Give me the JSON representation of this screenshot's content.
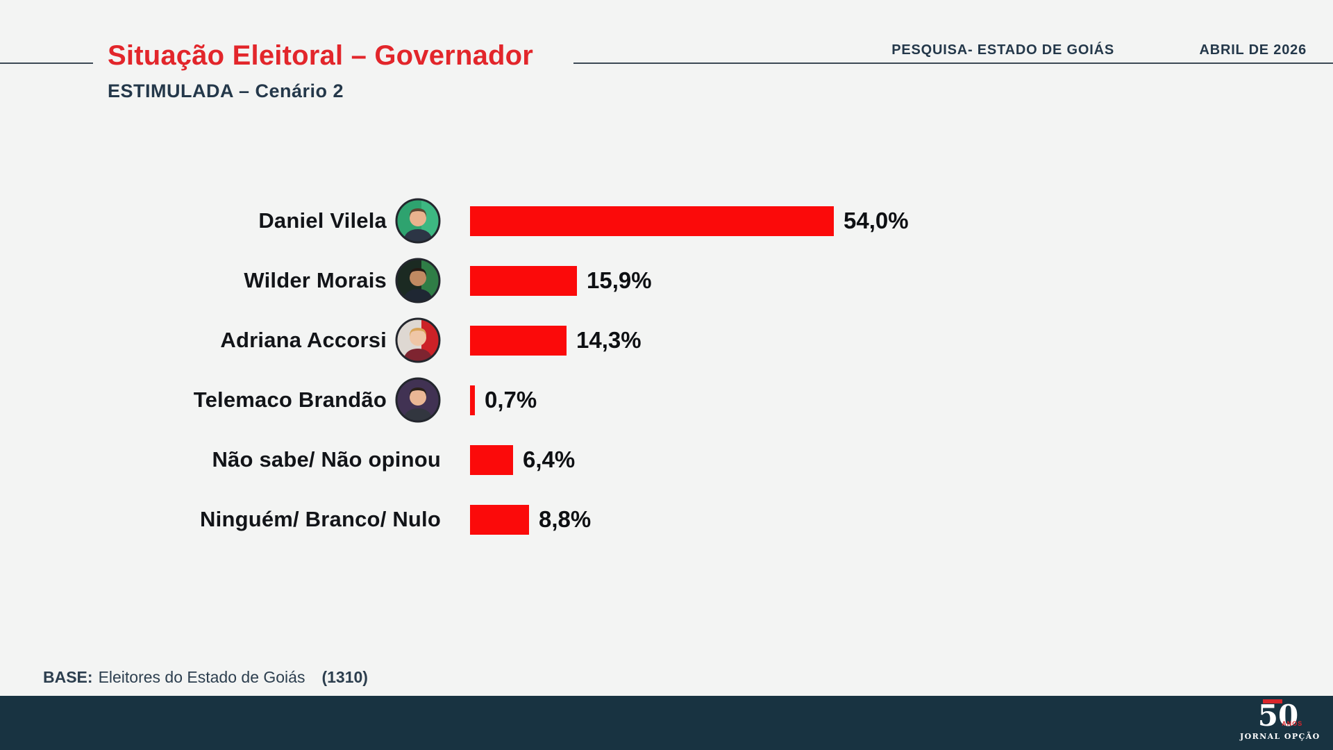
{
  "page": {
    "background": "#f3f4f3"
  },
  "header": {
    "title": "Situação Eleitoral – Governador",
    "subtitle": "ESTIMULADA – Cenário 2",
    "meta_left": "PESQUISA- ESTADO DE GOIÁS",
    "meta_right": "ABRIL DE 2026",
    "title_color": "#e2262b",
    "accent_line_color": "#3b4854"
  },
  "chart_data": {
    "type": "bar",
    "orientation": "horizontal",
    "unit": "%",
    "bar_color": "#fb0a0a",
    "xlim": [
      0,
      60
    ],
    "categories": [
      "Daniel Vilela",
      "Wilder Morais",
      "Adriana Accorsi",
      "Telemaco Brandão",
      "Não sabe/ Não opinou",
      "Ninguém/ Branco/ Nulo"
    ],
    "values": [
      54.0,
      15.9,
      14.3,
      0.7,
      6.4,
      8.8
    ],
    "items": [
      {
        "label": "Daniel Vilela",
        "value": 54.0,
        "display": "54,0%",
        "has_avatar": true,
        "avatar": {
          "name": "daniel-vilela-avatar",
          "bg": "#2ea36f",
          "bg2": "#3db882",
          "hair": "#5d4632",
          "skin": "#eab38e",
          "shirt": "#2c3545"
        }
      },
      {
        "label": "Wilder Morais",
        "value": 15.9,
        "display": "15,9%",
        "has_avatar": true,
        "avatar": {
          "name": "wilder-morais-avatar",
          "bg": "#1b2a22",
          "bg2": "#2f7d46",
          "hair": "#241a14",
          "skin": "#c08a62",
          "shirt": "#1f2733"
        }
      },
      {
        "label": "Adriana Accorsi",
        "value": 14.3,
        "display": "14,3%",
        "has_avatar": true,
        "avatar": {
          "name": "adriana-accorsi-avatar",
          "bg": "#ded8d2",
          "bg2": "#cc2127",
          "hair": "#d8a458",
          "skin": "#efc6a6",
          "shirt": "#7e2430"
        }
      },
      {
        "label": "Telemaco Brandão",
        "value": 0.7,
        "display": "0,7%",
        "has_avatar": true,
        "avatar": {
          "name": "telemaco-brandao-avatar",
          "bg": "#413253",
          "bg2": null,
          "hair": "#2b2118",
          "skin": "#eab795",
          "shirt": "#32363f"
        }
      },
      {
        "label": "Não sabe/ Não opinou",
        "value": 6.4,
        "display": "6,4%",
        "has_avatar": false,
        "avatar": null
      },
      {
        "label": "Ninguém/ Branco/ Nulo",
        "value": 8.8,
        "display": "8,8%",
        "has_avatar": false,
        "avatar": null
      }
    ],
    "title": "Situação Eleitoral – Governador",
    "subtitle": "ESTIMULADA – Cenário 2",
    "legend": "none",
    "grid": "off"
  },
  "footer": {
    "base_label": "BASE:",
    "base_text": "Eleitores do Estado de Goiás",
    "base_count": "(1310)",
    "bar_color": "#183341",
    "logo": {
      "number": "50",
      "anos": "ANOS",
      "name": "JORNAL OPÇÃO",
      "accent": "#d8262b"
    }
  }
}
